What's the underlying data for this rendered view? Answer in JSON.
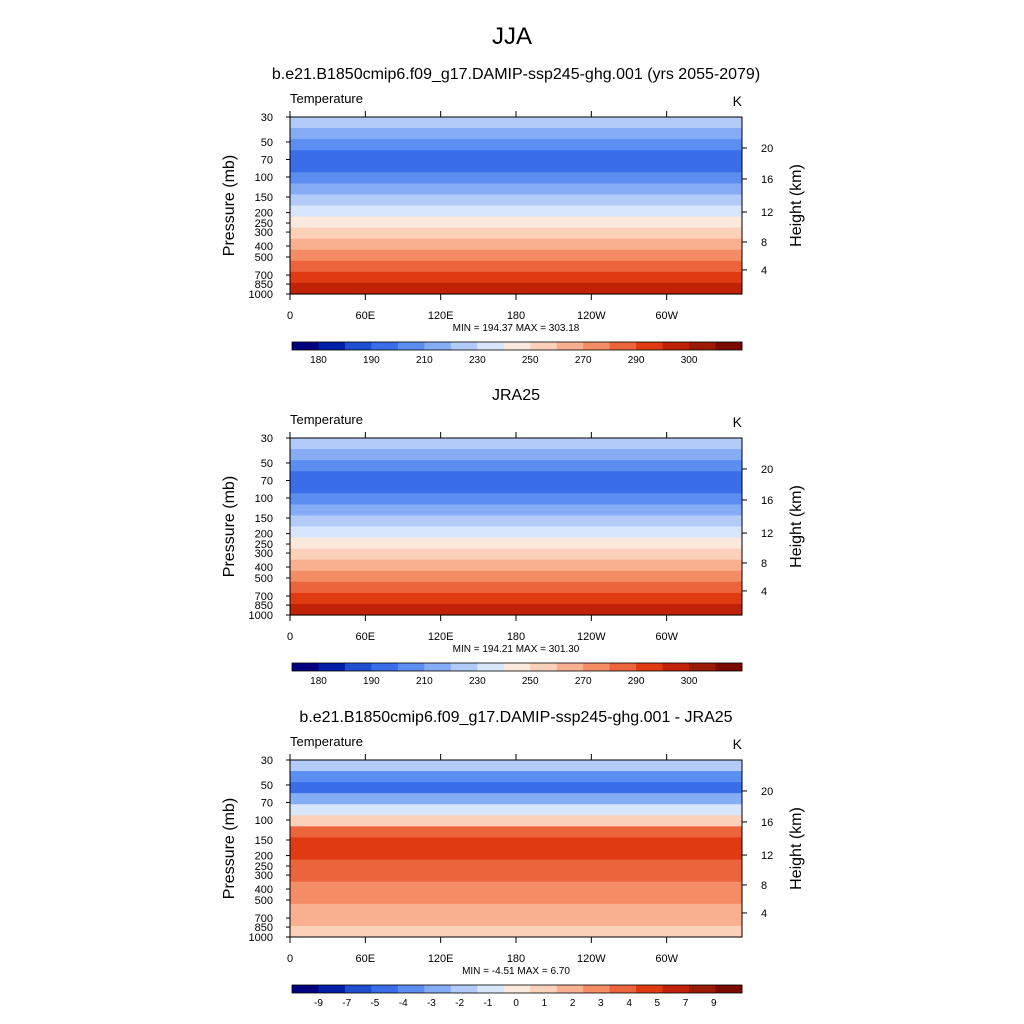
{
  "figure_title": "JJA",
  "chart_data": [
    {
      "type": "heatmap",
      "title": "b.e21.B1850cmip6.f09_g17.DAMIP-ssp245-ghg.001 (yrs 2055-2079)",
      "left_label": "Temperature",
      "units": "K",
      "ylabel": "Pressure (mb)",
      "y2label": "Height (km)",
      "x_ticks": [
        "0",
        "60E",
        "120E",
        "180",
        "120W",
        "60W"
      ],
      "y_ticks": [
        "30",
        "50",
        "70",
        "100",
        "150",
        "200",
        "250",
        "300",
        "400",
        "500",
        "700",
        "850",
        "1000"
      ],
      "y2_ticks": [
        "20",
        "16",
        "12",
        "8",
        "4"
      ],
      "stats": "MIN = 194.37  MAX = 303.18",
      "levels": [
        "180",
        "190",
        "210",
        "230",
        "250",
        "270",
        "290",
        "300"
      ],
      "colors": [
        "#00007f",
        "#001fa8",
        "#1f4fd1",
        "#3a6ee8",
        "#5b8ef0",
        "#86acf5",
        "#b2cbf8",
        "#d8e6fb",
        "#fbe9de",
        "#fbd1ba",
        "#f9b090",
        "#f48c65",
        "#ec643c",
        "#df3a12",
        "#c02208",
        "#9a1a05",
        "#7a0a00"
      ],
      "data_band_indices": [
        6,
        5,
        4,
        3,
        3,
        4,
        5,
        6,
        7,
        8,
        9,
        10,
        11,
        12,
        13,
        14
      ]
    },
    {
      "type": "heatmap",
      "title": "JRA25",
      "left_label": "Temperature",
      "units": "K",
      "ylabel": "Pressure (mb)",
      "y2label": "Height (km)",
      "x_ticks": [
        "0",
        "60E",
        "120E",
        "180",
        "120W",
        "60W"
      ],
      "y_ticks": [
        "30",
        "50",
        "70",
        "100",
        "150",
        "200",
        "250",
        "300",
        "400",
        "500",
        "700",
        "850",
        "1000"
      ],
      "y2_ticks": [
        "20",
        "16",
        "12",
        "8",
        "4"
      ],
      "stats": "MIN = 194.21  MAX = 301.30",
      "levels": [
        "180",
        "190",
        "210",
        "230",
        "250",
        "270",
        "290",
        "300"
      ],
      "colors": [
        "#00007f",
        "#001fa8",
        "#1f4fd1",
        "#3a6ee8",
        "#5b8ef0",
        "#86acf5",
        "#b2cbf8",
        "#d8e6fb",
        "#fbe9de",
        "#fbd1ba",
        "#f9b090",
        "#f48c65",
        "#ec643c",
        "#df3a12",
        "#c02208",
        "#9a1a05",
        "#7a0a00"
      ],
      "data_band_indices": [
        6,
        5,
        4,
        3,
        3,
        4,
        5,
        6,
        7,
        8,
        9,
        10,
        11,
        12,
        13,
        14
      ]
    },
    {
      "type": "heatmap",
      "title": "b.e21.B1850cmip6.f09_g17.DAMIP-ssp245-ghg.001 - JRA25",
      "left_label": "Temperature",
      "units": "K",
      "ylabel": "Pressure (mb)",
      "y2label": "Height (km)",
      "x_ticks": [
        "0",
        "60E",
        "120E",
        "180",
        "120W",
        "60W"
      ],
      "y_ticks": [
        "30",
        "50",
        "70",
        "100",
        "150",
        "200",
        "250",
        "300",
        "400",
        "500",
        "700",
        "850",
        "1000"
      ],
      "y2_ticks": [
        "20",
        "16",
        "12",
        "8",
        "4"
      ],
      "stats": "MIN =  -4.51  MAX =   6.70",
      "levels": [
        "-9",
        "-7",
        "-5",
        "-4",
        "-3",
        "-2",
        "-1",
        "0",
        "1",
        "2",
        "3",
        "4",
        "5",
        "7",
        "9"
      ],
      "colors": [
        "#00007f",
        "#001fa8",
        "#1f4fd1",
        "#3a6ee8",
        "#5b8ef0",
        "#86acf5",
        "#b2cbf8",
        "#d8e6fb",
        "#fbe9de",
        "#fbd1ba",
        "#f9b090",
        "#f48c65",
        "#ec643c",
        "#df3a12",
        "#c02208",
        "#9a1a05",
        "#7a0a00"
      ],
      "data_band_indices": [
        6,
        4,
        3,
        5,
        7,
        9,
        12,
        13,
        13,
        12,
        12,
        11,
        11,
        10,
        10,
        9
      ]
    }
  ]
}
